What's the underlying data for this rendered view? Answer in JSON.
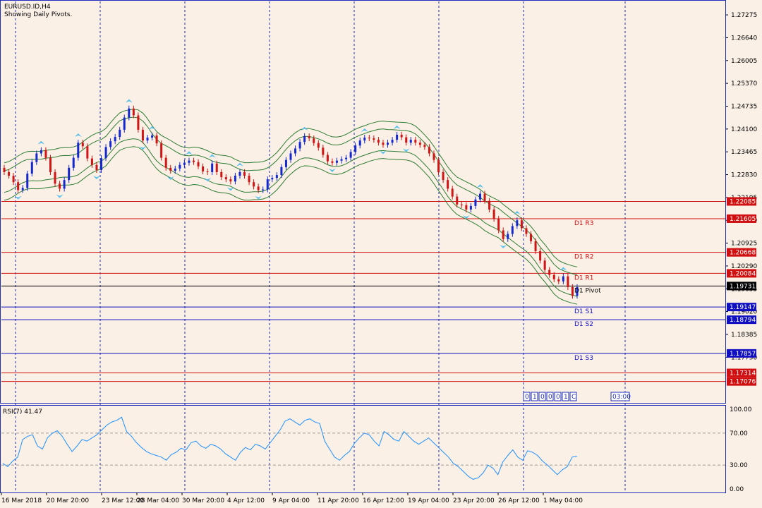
{
  "header": {
    "symbol": "EURUSD.ID,H4",
    "subtitle": "Showing Daily Pivots."
  },
  "colors": {
    "background": "#FAF0E6",
    "axis": "#1F2DBE",
    "bull": "#1428D2",
    "bear": "#D21414",
    "band": "#2E7D32",
    "arrow": "#5BC0EB",
    "resistance": "#D01010",
    "support": "#1010C0",
    "rsi_line": "#1E90FF"
  },
  "price_axis": {
    "ticks": [
      "1.27275",
      "1.26640",
      "1.26005",
      "1.25370",
      "1.24735",
      "1.24100",
      "1.23465",
      "1.22830",
      "1.22195",
      "1.21560",
      "1.20925",
      "1.20290",
      "1.19655",
      "1.19020",
      "1.18385",
      "1.17750"
    ],
    "min": 1.165,
    "max": 1.2765
  },
  "pivots": [
    {
      "name": "D1 R3",
      "value": "1.21605",
      "kind": "resistance"
    },
    {
      "name": "D1 R2",
      "value": "1.20668",
      "kind": "resistance"
    },
    {
      "name": "D1 R1",
      "value": "1.20084",
      "kind": "resistance"
    },
    {
      "name": "D1 Pivot",
      "value": "1.19731",
      "kind": "pivot"
    },
    {
      "name": "D1 S1",
      "value": "1.19147",
      "kind": "support"
    },
    {
      "name": "D1 S2",
      "value": "1.18794",
      "kind": "support"
    },
    {
      "name": "D1 S3",
      "value": "1.17857",
      "kind": "support"
    }
  ],
  "extra_levels": [
    {
      "value": "1.22085",
      "kind": "resistance"
    },
    {
      "value": "1.17314",
      "kind": "resistance"
    },
    {
      "value": "1.17076",
      "kind": "resistance"
    }
  ],
  "time_axis": [
    "16 Mar 2018",
    "20 Mar 20:00",
    "23 Mar 12:00",
    "28 Mar 04:00",
    "30 Mar 20:00",
    "4 Apr 12:00",
    "9 Apr 04:00",
    "11 Apr 20:00",
    "16 Apr 12:00",
    "19 Apr 04:00",
    "23 Apr 20:00",
    "26 Apr 12:00",
    "1 May 04:00"
  ],
  "countdown": {
    "digits": [
      "0",
      "1",
      "0",
      "0",
      "0",
      "1",
      "C"
    ],
    "time": "03:00"
  },
  "rsi": {
    "label": "RSI(7) 41.47",
    "levels": [
      "100.00",
      "70.00",
      "30.00",
      "0.00"
    ],
    "values": [
      32,
      28,
      35,
      40,
      62,
      66,
      68,
      54,
      50,
      64,
      70,
      73,
      66,
      56,
      47,
      54,
      62,
      60,
      64,
      68,
      74,
      80,
      84,
      86,
      90,
      72,
      66,
      58,
      52,
      47,
      44,
      42,
      40,
      36,
      43,
      46,
      51,
      49,
      58,
      60,
      54,
      51,
      56,
      54,
      50,
      44,
      40,
      36,
      46,
      52,
      49,
      56,
      54,
      50,
      58,
      66,
      74,
      85,
      88,
      84,
      80,
      86,
      88,
      84,
      82,
      60,
      50,
      40,
      36,
      42,
      47,
      57,
      64,
      70,
      68,
      60,
      54,
      72,
      68,
      62,
      60,
      72,
      66,
      60,
      56,
      60,
      64,
      58,
      52,
      46,
      40,
      32,
      28,
      22,
      16,
      12,
      14,
      20,
      30,
      26,
      18,
      34,
      42,
      49,
      40,
      36,
      48,
      46,
      42,
      35,
      30,
      24,
      18,
      24,
      28,
      40,
      41
    ]
  },
  "chart_data": {
    "type": "candlestick",
    "symbol": "EURUSD.ID",
    "timeframe": "H4",
    "closes": [
      1.229,
      1.228,
      1.2262,
      1.224,
      1.2246,
      1.2286,
      1.2318,
      1.2342,
      1.2351,
      1.233,
      1.229,
      1.2258,
      1.2244,
      1.2268,
      1.2302,
      1.233,
      1.2372,
      1.2362,
      1.2328,
      1.231,
      1.2296,
      1.2329,
      1.236,
      1.2376,
      1.2388,
      1.2408,
      1.2442,
      1.2467,
      1.2448,
      1.2408,
      1.2378,
      1.2386,
      1.2392,
      1.237,
      1.233,
      1.2302,
      1.2294,
      1.23,
      1.231,
      1.2316,
      1.2322,
      1.2318,
      1.2306,
      1.2292,
      1.229,
      1.2314,
      1.229,
      1.2276,
      1.227,
      1.2264,
      1.228,
      1.229,
      1.228,
      1.2262,
      1.225,
      1.224,
      1.2242,
      1.227,
      1.2274,
      1.2282,
      1.2304,
      1.2324,
      1.2342,
      1.2356,
      1.2374,
      1.239,
      1.2384,
      1.2371,
      1.2358,
      1.2338,
      1.232,
      1.2316,
      1.2322,
      1.2326,
      1.233,
      1.2346,
      1.2364,
      1.2378,
      1.2386,
      1.2384,
      1.238,
      1.2372,
      1.2366,
      1.2372,
      1.238,
      1.2394,
      1.2387,
      1.2372,
      1.238,
      1.2372,
      1.2366,
      1.236,
      1.2342,
      1.2324,
      1.229,
      1.2268,
      1.2244,
      1.2222,
      1.22,
      1.2198,
      1.2186,
      1.2196,
      1.2214,
      1.223,
      1.221,
      1.2186,
      1.216,
      1.2128,
      1.2104,
      1.2118,
      1.214,
      1.2156,
      1.2134,
      1.2118,
      1.2098,
      1.207,
      1.2044,
      1.2018,
      1.2004,
      1.1992,
      1.1986,
      1.2,
      1.197,
      1.1946,
      1.197
    ]
  }
}
